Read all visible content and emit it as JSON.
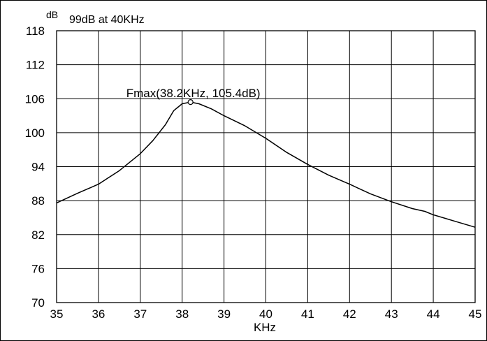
{
  "chart_data": {
    "type": "line",
    "ylabel": "dB",
    "xlabel": "KHz",
    "header_note": "99dB at 40KHz",
    "xlim": [
      35,
      45
    ],
    "ylim": [
      70,
      118
    ],
    "xticks": [
      "35",
      "36",
      "37",
      "38",
      "39",
      "40",
      "41",
      "42",
      "43",
      "44",
      "45"
    ],
    "yticks": [
      "118",
      "112",
      "106",
      "100",
      "94",
      "88",
      "82",
      "76",
      "70"
    ],
    "grid": true,
    "line_color": "#000000",
    "series": [
      {
        "x": [
          35.0,
          35.5,
          36.0,
          36.5,
          37.0,
          37.3,
          37.6,
          37.8,
          38.0,
          38.2,
          38.4,
          38.7,
          39.0,
          39.5,
          40.0,
          40.5,
          41.0,
          41.5,
          42.0,
          42.5,
          43.0,
          43.5,
          43.8,
          44.0,
          44.5,
          45.0
        ],
        "y": [
          87.6,
          89.3,
          90.9,
          93.3,
          96.3,
          98.6,
          101.4,
          103.9,
          105.1,
          105.4,
          105.1,
          104.2,
          103.0,
          101.2,
          99.0,
          96.5,
          94.4,
          92.5,
          90.9,
          89.2,
          87.8,
          86.6,
          86.1,
          85.5,
          84.4,
          83.3
        ]
      }
    ],
    "annotations": [
      {
        "text": "Fmax(38.2KHz, 105.4dB)",
        "x": 38.2,
        "y": 105.4,
        "marker": "circle"
      }
    ]
  }
}
